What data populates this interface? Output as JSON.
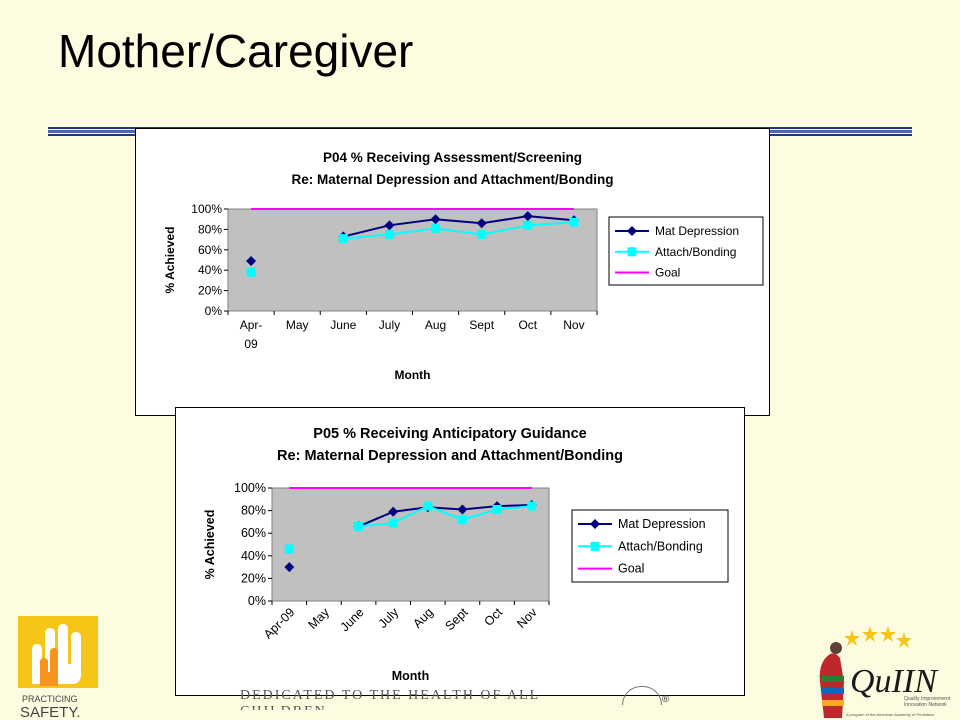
{
  "slide": {
    "title": "Mother/Caregiver",
    "footer_text": "DEDICATED TO THE HEALTH OF ALL CHILDREN",
    "footer_registered": "®"
  },
  "logos": {
    "left": {
      "lines": [
        "PRACTICING",
        "SAFETY."
      ]
    },
    "right": {
      "name": "QuIIN",
      "tagline_lines": [
        "Quality Improvement",
        "Innovation Network"
      ],
      "subline": "A program of the American Academy of Pediatrics"
    }
  },
  "colors": {
    "mat_depression": "#000080",
    "attach_bonding": "#00ffff",
    "goal": "#ff00ff",
    "plot_bg": "#c0c0c0"
  },
  "chart_data": [
    {
      "type": "line",
      "title": "P04 % Receiving Assessment/Screening",
      "subtitle": "Re: Maternal Depression and Attachment/Bonding",
      "xlabel": "Month",
      "ylabel": "% Achieved",
      "categories": [
        "Apr-09",
        "May",
        "June",
        "July",
        "Aug",
        "Sept",
        "Oct",
        "Nov"
      ],
      "ylim": [
        0,
        100
      ],
      "yticks": [
        "0%",
        "20%",
        "40%",
        "60%",
        "80%",
        "100%"
      ],
      "grid": false,
      "legend": "right",
      "x_labels_rotated": false,
      "series": [
        {
          "name": "Mat Depression",
          "marker": "diamond",
          "values": [
            49,
            null,
            73,
            84,
            90,
            86,
            93,
            89
          ]
        },
        {
          "name": "Attach/Bonding",
          "marker": "square",
          "values": [
            38,
            null,
            71,
            75,
            81,
            75,
            84,
            87
          ]
        },
        {
          "name": "Goal",
          "marker": "none",
          "values": [
            100,
            100,
            100,
            100,
            100,
            100,
            100,
            100
          ]
        }
      ]
    },
    {
      "type": "line",
      "title": "P05 % Receiving Anticipatory Guidance",
      "subtitle": "Re: Maternal Depression and Attachment/Bonding",
      "xlabel": "Month",
      "ylabel": "% Achieved",
      "categories": [
        "Apr-09",
        "May",
        "June",
        "July",
        "Aug",
        "Sept",
        "Oct",
        "Nov"
      ],
      "ylim": [
        0,
        100
      ],
      "yticks": [
        "0%",
        "20%",
        "40%",
        "60%",
        "80%",
        "100%"
      ],
      "grid": false,
      "legend": "right",
      "x_labels_rotated": true,
      "series": [
        {
          "name": "Mat Depression",
          "marker": "diamond",
          "values": [
            30,
            null,
            66,
            79,
            83,
            81,
            84,
            85
          ]
        },
        {
          "name": "Attach/Bonding",
          "marker": "square",
          "values": [
            46,
            null,
            66,
            69,
            84,
            72,
            81,
            84
          ]
        },
        {
          "name": "Goal",
          "marker": "none",
          "values": [
            100,
            100,
            100,
            100,
            100,
            100,
            100,
            100
          ]
        }
      ]
    }
  ]
}
